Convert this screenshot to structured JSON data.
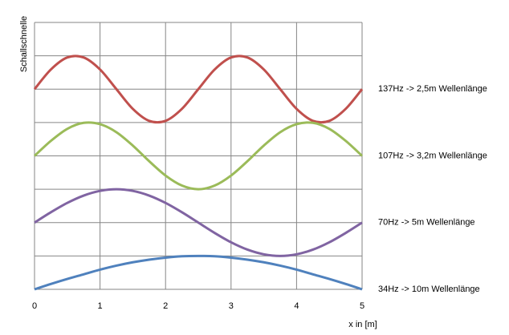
{
  "chart_data": {
    "type": "line",
    "y_label": "Schallschnelle",
    "x_label": "x in [m]",
    "x": [
      0,
      0.25,
      0.5,
      0.75,
      1,
      1.25,
      1.5,
      1.75,
      2,
      2.25,
      2.5,
      2.75,
      3,
      3.25,
      3.5,
      3.75,
      4,
      4.25,
      4.5,
      4.75,
      5
    ],
    "series": [
      {
        "name": "137Hz -> 2,5m Wellenlänge",
        "color": "#c0504d",
        "values": [
          6,
          6.59,
          6.95,
          6.95,
          6.59,
          6,
          5.41,
          5.05,
          5.05,
          5.41,
          6,
          6.59,
          6.95,
          6.95,
          6.59,
          6,
          5.41,
          5.05,
          5.05,
          5.41,
          6
        ]
      },
      {
        "name": "107Hz -> 3,2m Wellenlänge",
        "color": "#9bbb59",
        "values": [
          4,
          4.45,
          4.81,
          4.99,
          4.95,
          4.71,
          4.31,
          3.84,
          3.41,
          3.11,
          3,
          3.11,
          3.41,
          3.84,
          4.31,
          4.71,
          4.95,
          4.99,
          4.81,
          4.45,
          4
        ]
      },
      {
        "name": "70Hz -> 5m Wellenlänge",
        "color": "#8064a2",
        "values": [
          2,
          2.31,
          2.59,
          2.81,
          2.95,
          3,
          2.95,
          2.81,
          2.59,
          2.31,
          2,
          1.69,
          1.41,
          1.19,
          1.05,
          1,
          1.05,
          1.19,
          1.41,
          1.69,
          2
        ]
      },
      {
        "name": "34Hz -> 10m Wellenlänge",
        "color": "#4f81bd",
        "values": [
          0,
          0.16,
          0.31,
          0.45,
          0.59,
          0.71,
          0.81,
          0.89,
          0.95,
          0.99,
          1,
          0.99,
          0.95,
          0.89,
          0.81,
          0.71,
          0.59,
          0.45,
          0.31,
          0.16,
          0
        ]
      }
    ],
    "xlim": [
      0,
      5
    ],
    "xticks": [
      0,
      1,
      2,
      3,
      4,
      5
    ],
    "ylim": [
      0,
      8
    ],
    "yticks": [
      0,
      1,
      2,
      3,
      4,
      5,
      6,
      7,
      8
    ],
    "ytick_labels": false,
    "grid": true,
    "legend": "right"
  }
}
